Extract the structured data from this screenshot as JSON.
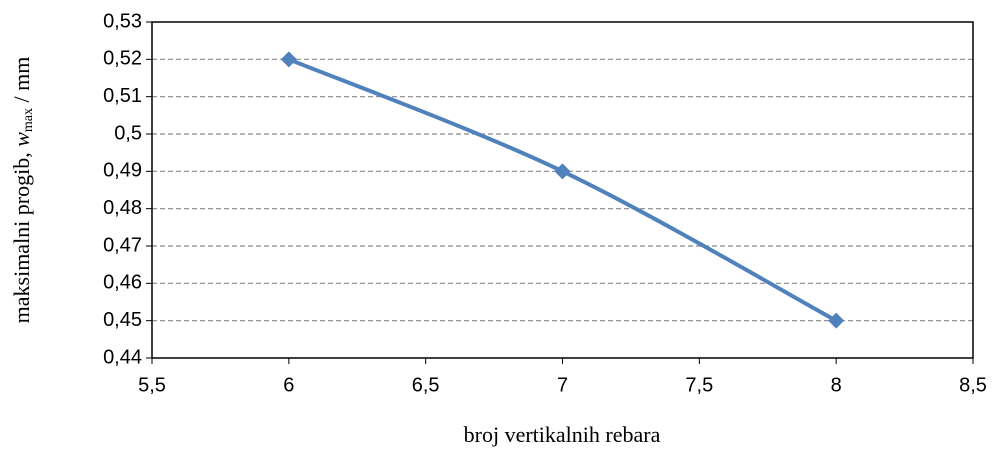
{
  "chart_data": {
    "type": "line",
    "xlabel": "broj vertikalnih rebara",
    "ylabel": [
      "maksimalni progib, ",
      "w",
      "max",
      " / mm"
    ],
    "x": [
      6,
      7,
      8
    ],
    "series": [
      {
        "name": null,
        "color": "#4f81bd",
        "values": [
          0.52,
          0.49,
          0.45
        ]
      }
    ],
    "xlim": [
      5.5,
      8.5
    ],
    "xticks": [
      {
        "value": 5.5,
        "label": "5,5"
      },
      6,
      {
        "value": 6.5,
        "label": "6,5"
      },
      7,
      {
        "value": 7.5,
        "label": "7,5"
      },
      8,
      {
        "value": 8.5,
        "label": "8,5"
      }
    ],
    "ylim": [
      0.44,
      0.53
    ],
    "yticks": [
      {
        "value": 0.44,
        "label": "0,44"
      },
      {
        "value": 0.45,
        "label": "0,45"
      },
      {
        "value": 0.46,
        "label": "0,46"
      },
      {
        "value": 0.47,
        "label": "0,47"
      },
      {
        "value": 0.48,
        "label": "0,48"
      },
      {
        "value": 0.49,
        "label": "0,49"
      },
      {
        "value": 0.5,
        "label": "0,5"
      },
      {
        "value": 0.51,
        "label": "0,51"
      },
      {
        "value": 0.52,
        "label": "0,52"
      },
      {
        "value": 0.53,
        "label": "0,53"
      }
    ],
    "grid": true
  }
}
